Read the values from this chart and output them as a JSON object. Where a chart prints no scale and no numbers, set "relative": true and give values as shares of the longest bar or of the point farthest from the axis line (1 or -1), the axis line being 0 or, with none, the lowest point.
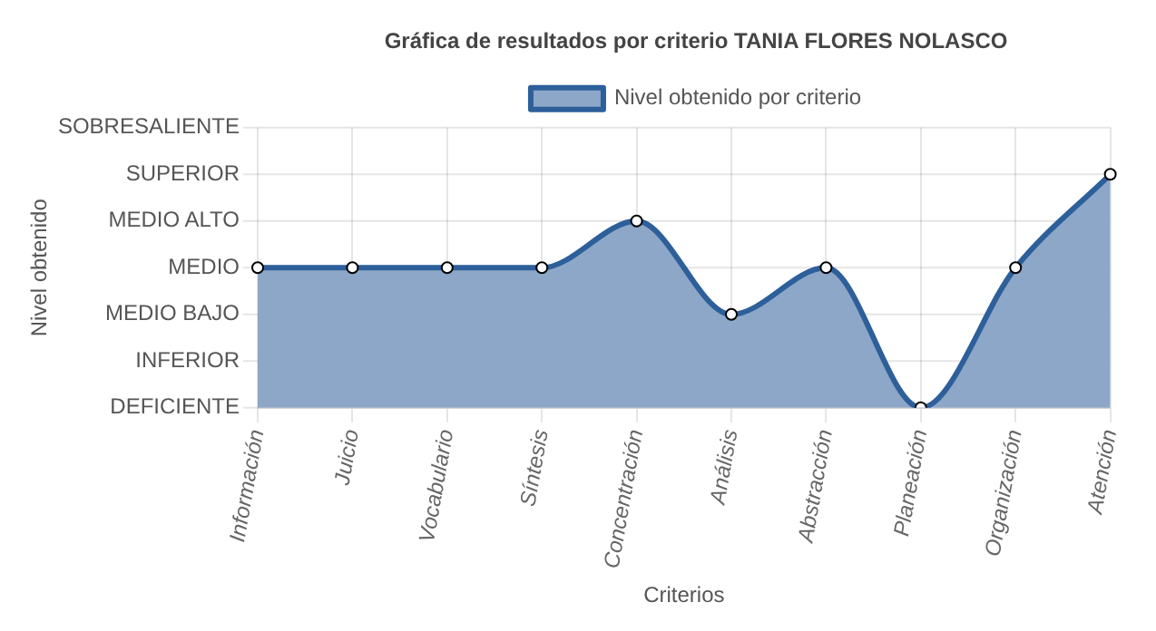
{
  "chart_data": {
    "type": "area",
    "title": "Gráfica de resultados por criterio TANIA FLORES NOLASCO",
    "xlabel": "Criterios",
    "categories": [
      "Información",
      "Juicio",
      "Vocabulario",
      "Síntesis",
      "Concentración",
      "Análisis",
      "Abstracción",
      "Planeación",
      "Organización",
      "Atención"
    ],
    "relative": true,
    "series": [
      {
        "name": "Nivel obtenido por criterio",
        "color": "#2d5f9a",
        "values": [
          0.6,
          0.6,
          0.6,
          0.6,
          0.8,
          0.4,
          0.6,
          0,
          0.6,
          1
        ]
      }
    ],
    "annotations": [
      "Nivel obtenido",
      "SOBRESALIENTE",
      "SUPERIOR",
      "MEDIO ALTO",
      "MEDIO",
      "MEDIO BAJO",
      "INFERIOR",
      "DEFICIENTE"
    ],
    "grid": true,
    "legend": "top",
    "marker": "circle",
    "line_style": "solid"
  }
}
